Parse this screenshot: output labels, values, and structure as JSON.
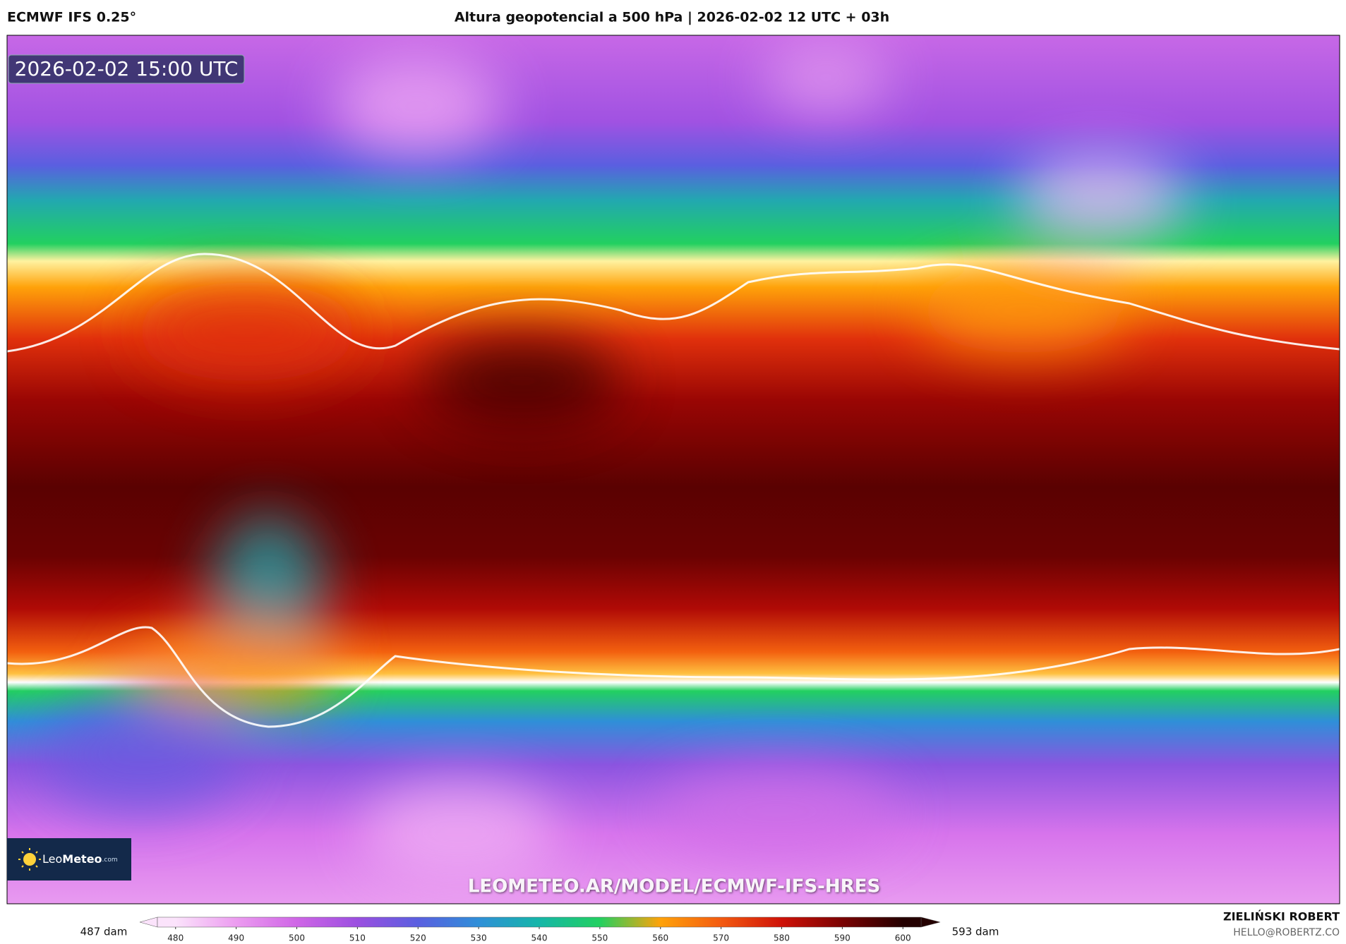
{
  "header": {
    "model": "ECMWF IFS 0.25°",
    "title": "Altura geopotencial a 500 hPa | 2026-02-02 12 UTC + 03h"
  },
  "map": {
    "timestamp": "2026-02-02 15:00 UTC",
    "watermark": "LEOMETEO.AR/MODEL/ECMWF-IFS-HRES"
  },
  "logo": {
    "light": "Leo",
    "bold": "Meteo",
    "suffix": ".com"
  },
  "colorbar": {
    "min_label": "487 dam",
    "max_label": "593 dam",
    "lim": [
      477,
      603
    ],
    "ticks": [
      480,
      490,
      500,
      510,
      520,
      530,
      540,
      550,
      560,
      570,
      580,
      590,
      600
    ],
    "colors": [
      "#fbe3fb",
      "#ec9cf0",
      "#cf66e6",
      "#9b4fe0",
      "#5a5fe0",
      "#2f8fd8",
      "#15b6a8",
      "#22d060",
      "#ffa20a",
      "#f35a10",
      "#cf1208",
      "#7a0202",
      "#240000"
    ]
  },
  "footer": {
    "author": "ZIELIŃSKI ROBERT",
    "email": "HELLO@ROBERTZ.CO"
  }
}
